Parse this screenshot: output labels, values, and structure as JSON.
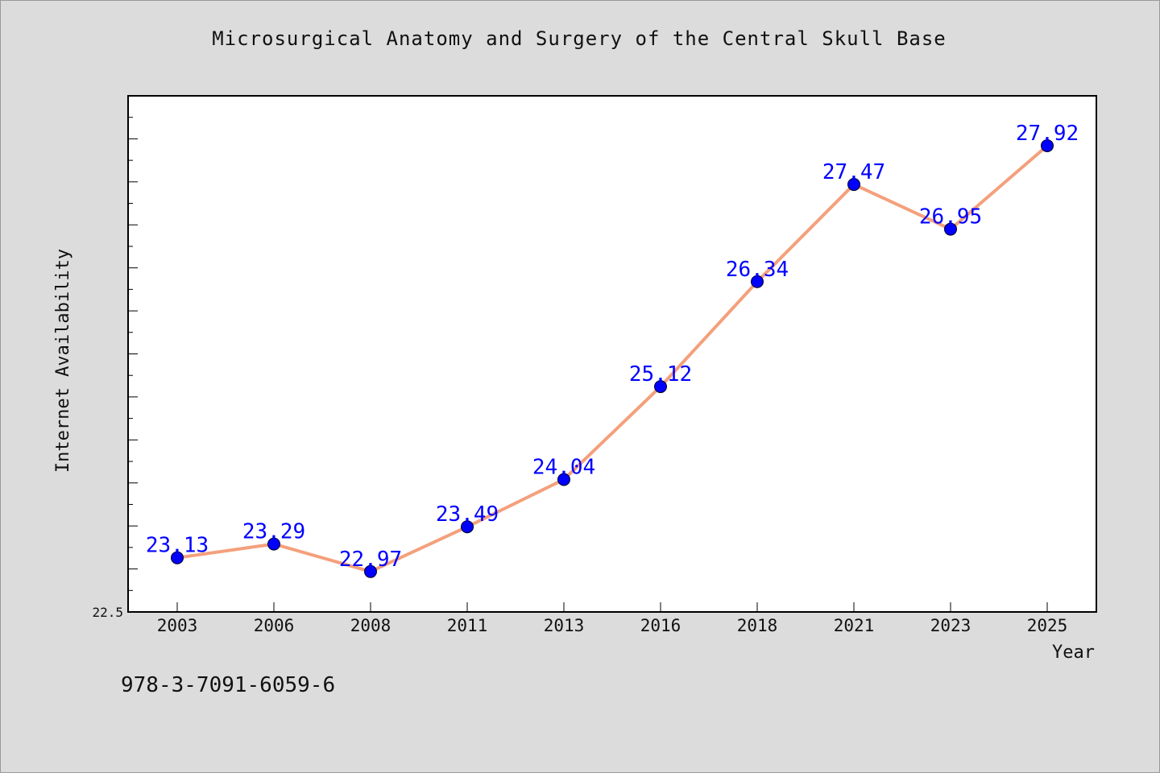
{
  "chart_data": {
    "type": "line",
    "title": "Microsurgical Anatomy and Surgery of the Central Skull Base",
    "xlabel": "Year",
    "ylabel": "Internet Availability",
    "categories": [
      "2003",
      "2006",
      "2008",
      "2011",
      "2013",
      "2016",
      "2018",
      "2021",
      "2023",
      "2025"
    ],
    "series": [
      {
        "values": [
          23.13,
          23.29,
          22.97,
          23.49,
          24.04,
          25.12,
          26.34,
          27.47,
          26.95,
          27.92
        ]
      }
    ],
    "data_labels": [
      "23.13",
      "23.29",
      "22.97",
      "23.49",
      "24.04",
      "25.12",
      "26.34",
      "27.47",
      "26.95",
      "27.92"
    ],
    "ylim": [
      22.5,
      28.5
    ],
    "ytick_label": "22.5",
    "grid": false,
    "legend": "none"
  },
  "footer": {
    "isbn": "978-3-7091-6059-6"
  },
  "colors": {
    "background": "#dcdcdc",
    "plot_background": "#ffffff",
    "line": "#f4a07c",
    "marker": "#0000ff",
    "data_label": "#0000ff"
  }
}
